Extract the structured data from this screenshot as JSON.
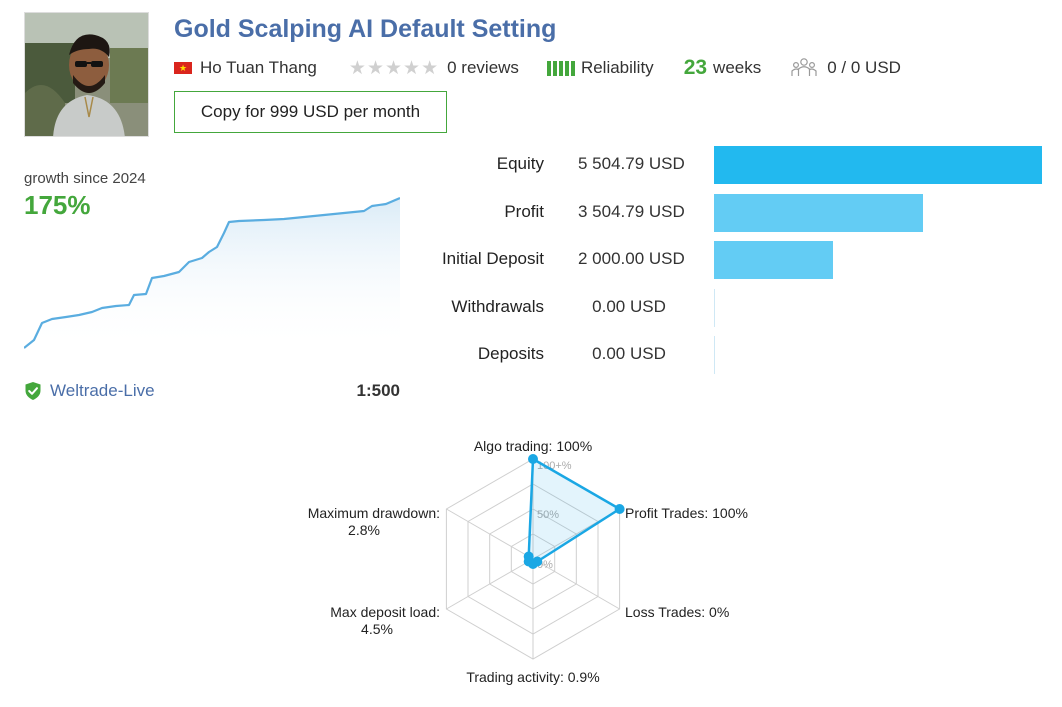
{
  "header": {
    "title": "Gold Scalping AI Default Setting",
    "author": "Ho Tuan Thang",
    "author_country_flag": "vietnam-flag-icon",
    "stars_filled": 0,
    "stars_total": 5,
    "reviews": "0 reviews",
    "reliability_label": "Reliability",
    "weeks_value": "23",
    "weeks_label": "weeks",
    "subscribers": "0 / 0 USD",
    "copy_button": "Copy for 999 USD per month"
  },
  "growth": {
    "label": "growth since 2024",
    "value": "175%",
    "line_color": "#5aade0"
  },
  "account": {
    "broker": "Weltrade-Live",
    "leverage": "1:500"
  },
  "stats": [
    {
      "label": "Equity",
      "value": "5 504.79 USD",
      "amount": 5504.79,
      "color": "#22b9ef"
    },
    {
      "label": "Profit",
      "value": "3 504.79 USD",
      "amount": 3504.79,
      "color": "#63ccf4"
    },
    {
      "label": "Initial Deposit",
      "value": "2 000.00 USD",
      "amount": 2000.0,
      "color": "#63ccf4"
    },
    {
      "label": "Withdrawals",
      "value": "0.00 USD",
      "amount": 0,
      "color": "#63ccf4"
    },
    {
      "label": "Deposits",
      "value": "0.00 USD",
      "amount": 0,
      "color": "#63ccf4"
    }
  ],
  "radar": {
    "scale_labels": [
      "100+%",
      "50%",
      "0%"
    ],
    "axes": [
      {
        "label": "Algo trading: 100%",
        "value": 100
      },
      {
        "label": "Profit Trades: 100%",
        "value": 100
      },
      {
        "label": "Loss Trades: 0%",
        "value": 0
      },
      {
        "label": "Trading activity: 0.9%",
        "value": 0.9
      },
      {
        "label": "Max deposit load:",
        "label2": "4.5%",
        "value": 4.5
      },
      {
        "label": "Maximum drawdown:",
        "label2": "2.8%",
        "value": 2.8
      }
    ],
    "color": "#1aa7e4"
  },
  "colors": {
    "brand_title": "#4a6ea8",
    "positive": "#44a73c"
  }
}
